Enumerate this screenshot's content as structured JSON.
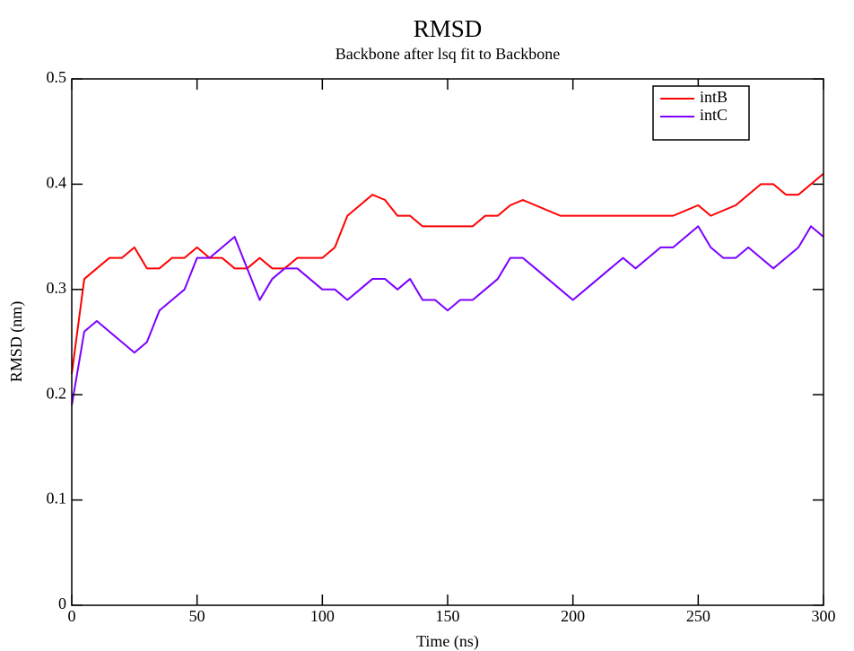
{
  "chart_data": {
    "type": "line",
    "title": "RMSD",
    "subtitle": "Backbone after lsq fit to Backbone",
    "x_label": "Time (ns)",
    "y_label": "RMSD (nm)",
    "x": [
      0,
      5,
      10,
      15,
      20,
      25,
      30,
      35,
      40,
      45,
      50,
      55,
      60,
      65,
      70,
      75,
      80,
      85,
      90,
      95,
      100,
      105,
      110,
      115,
      120,
      125,
      130,
      135,
      140,
      145,
      150,
      155,
      160,
      165,
      170,
      175,
      180,
      185,
      190,
      195,
      200,
      205,
      210,
      215,
      220,
      225,
      230,
      235,
      240,
      245,
      250,
      255,
      260,
      265,
      270,
      275,
      280,
      285,
      290,
      295,
      300
    ],
    "series": [
      {
        "name": "intB",
        "color": "#ff0000",
        "values": [
          0.22,
          0.31,
          0.32,
          0.33,
          0.33,
          0.34,
          0.32,
          0.32,
          0.33,
          0.33,
          0.34,
          0.33,
          0.33,
          0.32,
          0.32,
          0.33,
          0.32,
          0.32,
          0.33,
          0.33,
          0.33,
          0.34,
          0.37,
          0.38,
          0.39,
          0.385,
          0.37,
          0.37,
          0.36,
          0.36,
          0.36,
          0.36,
          0.36,
          0.37,
          0.37,
          0.38,
          0.385,
          0.38,
          0.375,
          0.37,
          0.37,
          0.37,
          0.37,
          0.37,
          0.37,
          0.37,
          0.37,
          0.37,
          0.37,
          0.375,
          0.38,
          0.37,
          0.375,
          0.38,
          0.39,
          0.4,
          0.4,
          0.39,
          0.39,
          0.4,
          0.41
        ]
      },
      {
        "name": "intC",
        "color": "#7b00ff",
        "values": [
          0.19,
          0.26,
          0.27,
          0.26,
          0.25,
          0.24,
          0.25,
          0.28,
          0.29,
          0.3,
          0.33,
          0.33,
          0.34,
          0.35,
          0.32,
          0.29,
          0.31,
          0.32,
          0.32,
          0.31,
          0.3,
          0.3,
          0.29,
          0.3,
          0.31,
          0.31,
          0.3,
          0.31,
          0.29,
          0.29,
          0.28,
          0.29,
          0.29,
          0.3,
          0.31,
          0.33,
          0.33,
          0.32,
          0.31,
          0.3,
          0.29,
          0.3,
          0.31,
          0.32,
          0.33,
          0.32,
          0.33,
          0.34,
          0.34,
          0.35,
          0.36,
          0.34,
          0.33,
          0.33,
          0.34,
          0.33,
          0.32,
          0.33,
          0.34,
          0.36,
          0.35
        ]
      }
    ],
    "xlim": [
      0,
      300
    ],
    "ylim": [
      0,
      0.5
    ],
    "xticks": [
      0,
      50,
      100,
      150,
      200,
      250,
      300
    ],
    "yticks": [
      0,
      0.1,
      0.2,
      0.3,
      0.4,
      0.5
    ],
    "grid": false,
    "legend": "upper right"
  }
}
